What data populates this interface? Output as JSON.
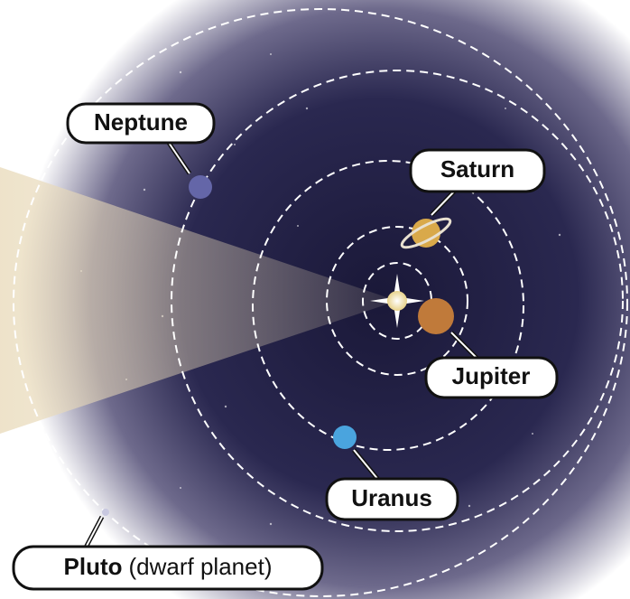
{
  "labels": {
    "neptune": "Neptune",
    "saturn": "Saturn",
    "jupiter": "Jupiter",
    "uranus": "Uranus",
    "pluto": "Pluto",
    "pluto_note": "(dwarf planet)"
  }
}
